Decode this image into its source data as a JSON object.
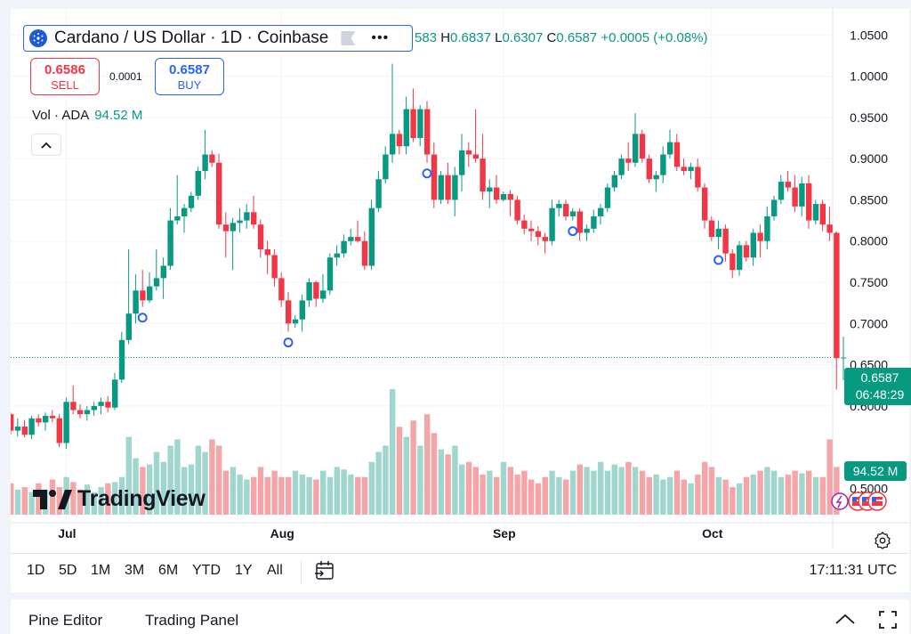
{
  "legend": {
    "title": "Cardano / US Dollar · 1D · Coinbase",
    "icons": [
      "cardano-icon",
      "flag-icon",
      "more-icon"
    ],
    "ohlc": {
      "o_partial": "583",
      "h_label": "H",
      "h": "0.6837",
      "l_label": "L",
      "l": "0.6307",
      "c_label": "C",
      "c": "0.6587",
      "change": "+0.0005 (+0.08%)"
    }
  },
  "trade": {
    "sell_price": "0.6586",
    "sell_label": "SELL",
    "spread": "0.0001",
    "buy_price": "0.6587",
    "buy_label": "BUY"
  },
  "volume_legend": {
    "label": "Vol · ADA",
    "value": "94.52 M"
  },
  "logo": {
    "text": "TradingView"
  },
  "last_price_tag": {
    "price": "0.6587",
    "countdown": "06:48:29"
  },
  "volume_tag": "94.52 M",
  "time_ranges": [
    "1D",
    "5D",
    "1M",
    "3M",
    "6M",
    "YTD",
    "1Y",
    "All"
  ],
  "clock": "17:11:31 UTC",
  "bottom_tabs": [
    "Pine Editor",
    "Trading Panel"
  ],
  "colors": {
    "up": "#089981",
    "down": "#f23645",
    "up_vol": "#9fd7cf",
    "down_vol": "#f5a5a8",
    "accent": "#2962ff"
  },
  "chart_data": {
    "type": "candlestick",
    "title": "Cardano / US Dollar · 1D · Coinbase",
    "ylim": [
      0.48,
      1.06
    ],
    "y_ticks": [
      "1.0500",
      "1.0000",
      "0.9500",
      "0.9000",
      "0.8500",
      "0.8000",
      "0.7500",
      "0.7000",
      "0.6500",
      "0.6000",
      "0.5000"
    ],
    "x_ticks": [
      {
        "label": "Jul",
        "index": 8
      },
      {
        "label": "Aug",
        "index": 39
      },
      {
        "label": "Sep",
        "index": 71
      },
      {
        "label": "Oct",
        "index": 101
      }
    ],
    "last_price": 0.6587,
    "markers_at_index": [
      19,
      40,
      60,
      81,
      102
    ],
    "candles": [
      [
        0.59,
        0.592,
        0.565,
        0.57
      ],
      [
        0.57,
        0.585,
        0.563,
        0.575
      ],
      [
        0.575,
        0.583,
        0.562,
        0.565
      ],
      [
        0.565,
        0.588,
        0.56,
        0.585
      ],
      [
        0.585,
        0.59,
        0.575,
        0.58
      ],
      [
        0.58,
        0.592,
        0.57,
        0.588
      ],
      [
        0.588,
        0.595,
        0.58,
        0.585
      ],
      [
        0.585,
        0.59,
        0.55,
        0.555
      ],
      [
        0.555,
        0.61,
        0.548,
        0.605
      ],
      [
        0.605,
        0.625,
        0.59,
        0.595
      ],
      [
        0.595,
        0.602,
        0.585,
        0.59
      ],
      [
        0.59,
        0.6,
        0.582,
        0.595
      ],
      [
        0.595,
        0.605,
        0.588,
        0.6
      ],
      [
        0.6,
        0.61,
        0.59,
        0.605
      ],
      [
        0.605,
        0.612,
        0.592,
        0.598
      ],
      [
        0.598,
        0.64,
        0.595,
        0.632
      ],
      [
        0.632,
        0.69,
        0.628,
        0.68
      ],
      [
        0.68,
        0.79,
        0.675,
        0.712
      ],
      [
        0.712,
        0.76,
        0.7,
        0.74
      ],
      [
        0.74,
        0.765,
        0.72,
        0.728
      ],
      [
        0.728,
        0.762,
        0.725,
        0.745
      ],
      [
        0.745,
        0.79,
        0.74,
        0.755
      ],
      [
        0.755,
        0.78,
        0.73,
        0.77
      ],
      [
        0.77,
        0.84,
        0.765,
        0.825
      ],
      [
        0.825,
        0.88,
        0.82,
        0.83
      ],
      [
        0.83,
        0.845,
        0.81,
        0.84
      ],
      [
        0.84,
        0.86,
        0.835,
        0.855
      ],
      [
        0.855,
        0.89,
        0.85,
        0.885
      ],
      [
        0.885,
        0.935,
        0.875,
        0.905
      ],
      [
        0.905,
        0.91,
        0.89,
        0.895
      ],
      [
        0.895,
        0.906,
        0.815,
        0.82
      ],
      [
        0.82,
        0.835,
        0.78,
        0.812
      ],
      [
        0.812,
        0.828,
        0.765,
        0.822
      ],
      [
        0.822,
        0.84,
        0.81,
        0.825
      ],
      [
        0.825,
        0.845,
        0.815,
        0.835
      ],
      [
        0.835,
        0.855,
        0.815,
        0.82
      ],
      [
        0.82,
        0.826,
        0.78,
        0.79
      ],
      [
        0.79,
        0.8,
        0.76,
        0.783
      ],
      [
        0.783,
        0.79,
        0.745,
        0.755
      ],
      [
        0.755,
        0.762,
        0.72,
        0.728
      ],
      [
        0.728,
        0.738,
        0.69,
        0.7
      ],
      [
        0.7,
        0.71,
        0.695,
        0.705
      ],
      [
        0.705,
        0.735,
        0.69,
        0.728
      ],
      [
        0.728,
        0.755,
        0.72,
        0.75
      ],
      [
        0.75,
        0.752,
        0.72,
        0.73
      ],
      [
        0.73,
        0.76,
        0.725,
        0.74
      ],
      [
        0.74,
        0.785,
        0.735,
        0.78
      ],
      [
        0.78,
        0.795,
        0.77,
        0.785
      ],
      [
        0.785,
        0.808,
        0.78,
        0.8
      ],
      [
        0.8,
        0.815,
        0.795,
        0.805
      ],
      [
        0.805,
        0.825,
        0.798,
        0.8
      ],
      [
        0.8,
        0.812,
        0.765,
        0.77
      ],
      [
        0.77,
        0.85,
        0.765,
        0.84
      ],
      [
        0.84,
        0.885,
        0.835,
        0.875
      ],
      [
        0.875,
        0.915,
        0.87,
        0.905
      ],
      [
        0.905,
        1.015,
        0.895,
        0.93
      ],
      [
        0.93,
        0.935,
        0.905,
        0.915
      ],
      [
        0.915,
        0.975,
        0.905,
        0.96
      ],
      [
        0.96,
        0.985,
        0.92,
        0.925
      ],
      [
        0.925,
        0.965,
        0.915,
        0.96
      ],
      [
        0.96,
        0.97,
        0.895,
        0.905
      ],
      [
        0.905,
        0.92,
        0.84,
        0.85
      ],
      [
        0.85,
        0.885,
        0.845,
        0.88
      ],
      [
        0.88,
        0.895,
        0.845,
        0.85
      ],
      [
        0.85,
        0.89,
        0.83,
        0.88
      ],
      [
        0.88,
        0.93,
        0.86,
        0.91
      ],
      [
        0.91,
        0.92,
        0.89,
        0.905
      ],
      [
        0.905,
        0.96,
        0.895,
        0.9
      ],
      [
        0.9,
        0.93,
        0.85,
        0.86
      ],
      [
        0.86,
        0.875,
        0.84,
        0.865
      ],
      [
        0.865,
        0.88,
        0.845,
        0.85
      ],
      [
        0.85,
        0.86,
        0.848,
        0.857
      ],
      [
        0.857,
        0.862,
        0.83,
        0.85
      ],
      [
        0.85,
        0.855,
        0.82,
        0.825
      ],
      [
        0.825,
        0.832,
        0.808,
        0.815
      ],
      [
        0.815,
        0.825,
        0.8,
        0.812
      ],
      [
        0.812,
        0.818,
        0.795,
        0.805
      ],
      [
        0.805,
        0.81,
        0.785,
        0.8
      ],
      [
        0.8,
        0.85,
        0.795,
        0.84
      ],
      [
        0.84,
        0.85,
        0.83,
        0.845
      ],
      [
        0.845,
        0.85,
        0.825,
        0.83
      ],
      [
        0.83,
        0.84,
        0.825,
        0.836
      ],
      [
        0.836,
        0.84,
        0.8,
        0.81
      ],
      [
        0.81,
        0.82,
        0.8,
        0.815
      ],
      [
        0.815,
        0.838,
        0.81,
        0.83
      ],
      [
        0.83,
        0.845,
        0.82,
        0.84
      ],
      [
        0.84,
        0.87,
        0.835,
        0.865
      ],
      [
        0.865,
        0.885,
        0.86,
        0.88
      ],
      [
        0.88,
        0.905,
        0.875,
        0.9
      ],
      [
        0.9,
        0.92,
        0.885,
        0.895
      ],
      [
        0.895,
        0.955,
        0.89,
        0.93
      ],
      [
        0.93,
        0.935,
        0.895,
        0.9
      ],
      [
        0.9,
        0.905,
        0.87,
        0.875
      ],
      [
        0.875,
        0.885,
        0.86,
        0.88
      ],
      [
        0.88,
        0.915,
        0.87,
        0.905
      ],
      [
        0.905,
        0.935,
        0.9,
        0.92
      ],
      [
        0.92,
        0.93,
        0.885,
        0.89
      ],
      [
        0.89,
        0.9,
        0.88,
        0.885
      ],
      [
        0.885,
        0.895,
        0.875,
        0.89
      ],
      [
        0.89,
        0.9,
        0.86,
        0.865
      ],
      [
        0.865,
        0.87,
        0.815,
        0.825
      ],
      [
        0.825,
        0.83,
        0.8,
        0.805
      ],
      [
        0.805,
        0.825,
        0.79,
        0.815
      ],
      [
        0.815,
        0.82,
        0.775,
        0.785
      ],
      [
        0.785,
        0.79,
        0.755,
        0.765
      ],
      [
        0.765,
        0.8,
        0.758,
        0.795
      ],
      [
        0.795,
        0.8,
        0.775,
        0.78
      ],
      [
        0.78,
        0.815,
        0.77,
        0.81
      ],
      [
        0.81,
        0.82,
        0.78,
        0.8
      ],
      [
        0.8,
        0.842,
        0.79,
        0.83
      ],
      [
        0.83,
        0.855,
        0.825,
        0.85
      ],
      [
        0.85,
        0.88,
        0.845,
        0.872
      ],
      [
        0.872,
        0.885,
        0.86,
        0.865
      ],
      [
        0.865,
        0.88,
        0.835,
        0.842
      ],
      [
        0.842,
        0.878,
        0.83,
        0.87
      ],
      [
        0.87,
        0.88,
        0.815,
        0.825
      ],
      [
        0.825,
        0.85,
        0.82,
        0.845
      ],
      [
        0.845,
        0.85,
        0.812,
        0.82
      ],
      [
        0.82,
        0.842,
        0.8,
        0.81
      ],
      [
        0.81,
        0.812,
        0.62,
        0.658
      ],
      [
        0.658,
        0.684,
        0.631,
        0.6587
      ]
    ],
    "volume": {
      "max_label": "94.52 M",
      "relative": [
        0.25,
        0.2,
        0.22,
        0.18,
        0.25,
        0.2,
        0.28,
        0.22,
        0.3,
        0.26,
        0.2,
        0.24,
        0.18,
        0.22,
        0.25,
        0.26,
        0.3,
        0.62,
        0.45,
        0.38,
        0.4,
        0.5,
        0.42,
        0.55,
        0.6,
        0.38,
        0.4,
        0.55,
        0.5,
        0.6,
        0.55,
        0.35,
        0.38,
        0.32,
        0.28,
        0.3,
        0.38,
        0.3,
        0.35,
        0.3,
        0.3,
        0.35,
        0.32,
        0.3,
        0.28,
        0.35,
        0.3,
        0.38,
        0.36,
        0.32,
        0.3,
        0.3,
        0.42,
        0.5,
        0.55,
        1.0,
        0.7,
        0.62,
        0.75,
        0.55,
        0.8,
        0.65,
        0.52,
        0.48,
        0.55,
        0.4,
        0.42,
        0.38,
        0.32,
        0.35,
        0.3,
        0.42,
        0.38,
        0.32,
        0.35,
        0.28,
        0.25,
        0.3,
        0.35,
        0.3,
        0.28,
        0.35,
        0.4,
        0.38,
        0.35,
        0.42,
        0.35,
        0.4,
        0.38,
        0.42,
        0.38,
        0.35,
        0.3,
        0.32,
        0.28,
        0.3,
        0.35,
        0.28,
        0.25,
        0.32,
        0.42,
        0.38,
        0.3,
        0.28,
        0.22,
        0.25,
        0.3,
        0.32,
        0.35,
        0.38,
        0.35,
        0.3,
        0.32,
        0.35,
        0.33,
        0.35,
        0.3,
        0.3,
        0.6,
        0.38
      ]
    }
  }
}
